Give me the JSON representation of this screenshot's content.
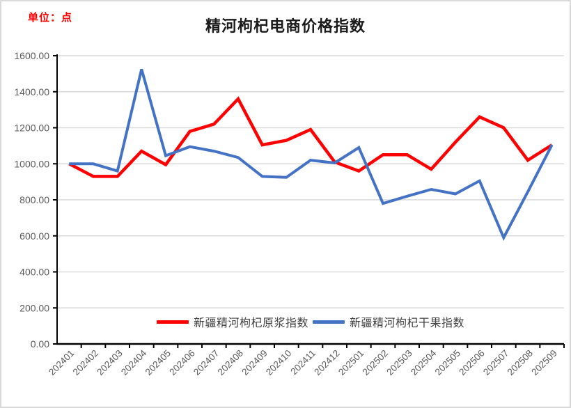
{
  "header": {
    "unit_label": "单位：点",
    "title": "精河枸杞电商价格指数"
  },
  "colors": {
    "series_red": "#ff0000",
    "series_blue": "#4472c4",
    "unit_label_text": "#ff0000",
    "title_text": "#1a1a1a",
    "axis_text": "#595959",
    "axis_line": "#000000",
    "gridline": "#d9d9d9",
    "frame_border": "#d9d9d9"
  },
  "chart_data": {
    "type": "line",
    "title": "精河枸杞电商价格指数",
    "unit": "单位：点",
    "xlabel": "",
    "ylabel": "",
    "ylim": [
      0,
      1600
    ],
    "ytick_step": 200,
    "y_ticks": [
      "0.00",
      "200.00",
      "400.00",
      "600.00",
      "800.00",
      "1000.00",
      "1200.00",
      "1400.00",
      "1600.00"
    ],
    "grid": "horizontal",
    "legend_position": "bottom-inside",
    "categories": [
      "202401",
      "202402",
      "202403",
      "202404",
      "202405",
      "202406",
      "202407",
      "202408",
      "202409",
      "202410",
      "202411",
      "202412",
      "202501",
      "202502",
      "202503",
      "202504",
      "202505",
      "202506",
      "202507",
      "202508",
      "202509"
    ],
    "series": [
      {
        "name": "新疆精河枸杞原浆指数",
        "color": "#ff0000",
        "values": [
          1000,
          930,
          930,
          1070,
          995,
          1180,
          1220,
          1360,
          1105,
          1130,
          1190,
          1010,
          960,
          1050,
          1050,
          970,
          1120,
          1260,
          1200,
          1020,
          1105
        ]
      },
      {
        "name": "新疆精河枸杞干果指数",
        "color": "#4472c4",
        "values": [
          1000,
          1000,
          960,
          1525,
          1045,
          1095,
          1070,
          1035,
          930,
          925,
          1020,
          1005,
          1090,
          780,
          820,
          858,
          833,
          905,
          590,
          845,
          1105
        ]
      }
    ]
  },
  "legend": {
    "items": [
      {
        "label": "新疆精河枸杞原浆指数",
        "color": "#ff0000"
      },
      {
        "label": "新疆精河枸杞干果指数",
        "color": "#4472c4"
      }
    ]
  }
}
